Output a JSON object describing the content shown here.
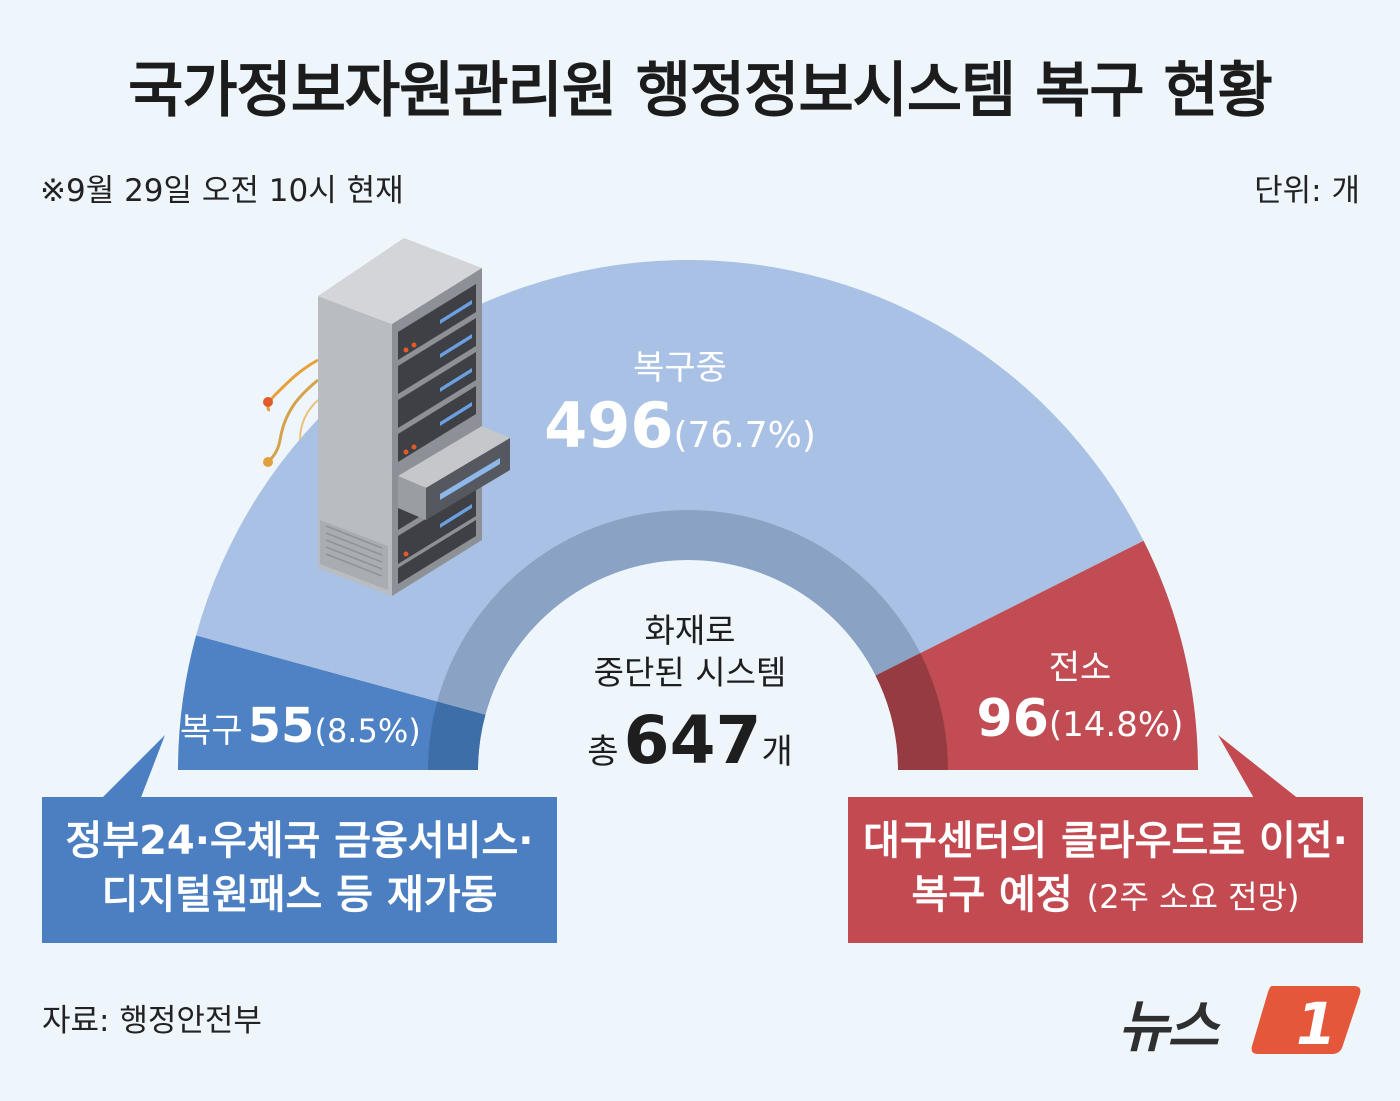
{
  "title": "국가정보자원관리원 행정정보시스템 복구 현황",
  "note": "※9월 29일 오전 10시 현재",
  "unit": "단위: 개",
  "chart_data": {
    "type": "pie",
    "title": "국가정보자원관리원 행정정보시스템 복구 현황",
    "categories": [
      "복구",
      "복구중",
      "전소"
    ],
    "values": [
      55,
      496,
      96
    ],
    "percents": [
      "8.5%",
      "76.7%",
      "14.8%"
    ],
    "colors": [
      "#4e82c4",
      "#a9c1e4",
      "#c14c53"
    ]
  },
  "labels": {
    "recovering": {
      "name": "복구중",
      "value": "496",
      "pct": "(76.7%)"
    },
    "relocation": {
      "name": "전소",
      "value": "96",
      "pct": "(14.8%)"
    },
    "restored": {
      "name": "복구",
      "value": "55",
      "pct": "(8.5%)"
    }
  },
  "center": {
    "line1": "화재로",
    "line2": "중단된 시스템",
    "total_prefix": "총",
    "total_value": "647",
    "total_suffix": "개"
  },
  "callouts": {
    "blue": {
      "line1": "정부24·우체국 금융서비스·",
      "line2": "디지털원패스 등 재가동"
    },
    "red": {
      "line1": "대구센터의 클라우드로 이전·",
      "line2_main": "복구 예정",
      "line2_small": "(2주 소요 전망)"
    }
  },
  "source": "자료: 행정안전부",
  "logo": {
    "text": "뉴스",
    "mark": "1"
  },
  "icons": [
    "server-rack-icon",
    "cable-icon"
  ]
}
